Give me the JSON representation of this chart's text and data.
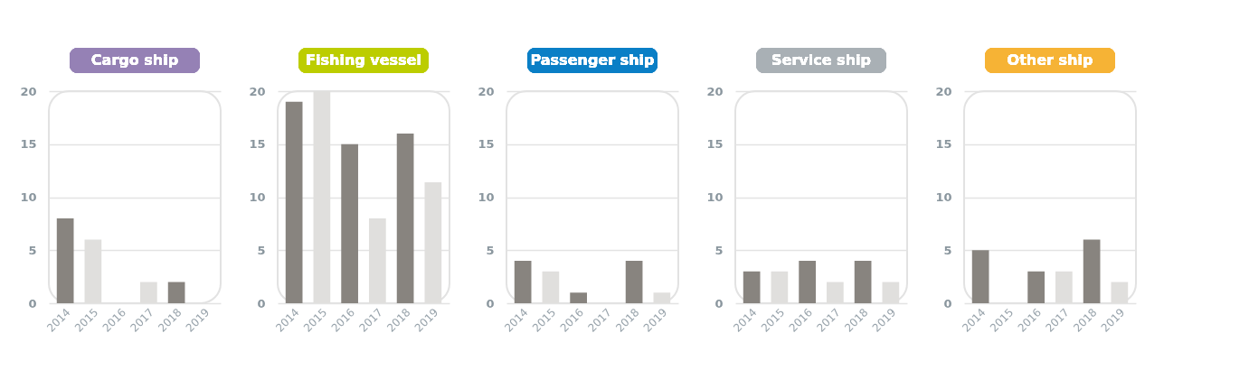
{
  "chart_data": [
    {
      "type": "bar",
      "title": "Cargo ship",
      "categories": [
        "2014",
        "2015",
        "2016",
        "2017",
        "2018",
        "2019"
      ],
      "values": [
        8,
        6,
        0,
        2,
        2,
        0
      ],
      "colors": [
        "#88847f",
        "#e0dfdd",
        "#88847f",
        "#e0dfdd",
        "#88847f",
        "#e0dfdd"
      ],
      "ylim": [
        0,
        20
      ],
      "yticks": [
        0,
        5,
        10,
        15,
        20
      ],
      "grid": "y"
    },
    {
      "type": "bar",
      "title": "Fishing vessel",
      "categories": [
        "2014",
        "2015",
        "2016",
        "2017",
        "2018",
        "2019"
      ],
      "values": [
        19,
        20,
        15,
        8,
        16,
        11.4
      ],
      "colors": [
        "#88847f",
        "#e0dfdd",
        "#88847f",
        "#e0dfdd",
        "#88847f",
        "#e0dfdd"
      ],
      "ylim": [
        0,
        20
      ],
      "yticks": [
        0,
        5,
        10,
        15,
        20
      ],
      "grid": "y"
    },
    {
      "type": "bar",
      "title": "Passenger ship",
      "categories": [
        "2014",
        "2015",
        "2016",
        "2017",
        "2018",
        "2019"
      ],
      "values": [
        4,
        3,
        1,
        0,
        4,
        1
      ],
      "colors": [
        "#88847f",
        "#e0dfdd",
        "#88847f",
        "#e0dfdd",
        "#88847f",
        "#e0dfdd"
      ],
      "ylim": [
        0,
        20
      ],
      "yticks": [
        0,
        5,
        10,
        15,
        20
      ],
      "grid": "y"
    },
    {
      "type": "bar",
      "title": "Service ship",
      "categories": [
        "2014",
        "2015",
        "2016",
        "2017",
        "2018",
        "2019"
      ],
      "values": [
        3,
        3,
        4,
        2,
        4,
        2
      ],
      "colors": [
        "#88847f",
        "#e0dfdd",
        "#88847f",
        "#e0dfdd",
        "#88847f",
        "#e0dfdd"
      ],
      "ylim": [
        0,
        20
      ],
      "yticks": [
        0,
        5,
        10,
        15,
        20
      ],
      "grid": "y"
    },
    {
      "type": "bar",
      "title": "Other ship",
      "categories": [
        "2014",
        "2015",
        "2016",
        "2017",
        "2018",
        "2019"
      ],
      "values": [
        5,
        0,
        3,
        3,
        6,
        2
      ],
      "colors": [
        "#88847f",
        "#e0dfdd",
        "#88847f",
        "#e0dfdd",
        "#88847f",
        "#e0dfdd"
      ],
      "ylim": [
        0,
        20
      ],
      "yticks": [
        0,
        5,
        10,
        15,
        20
      ],
      "grid": "y"
    }
  ]
}
